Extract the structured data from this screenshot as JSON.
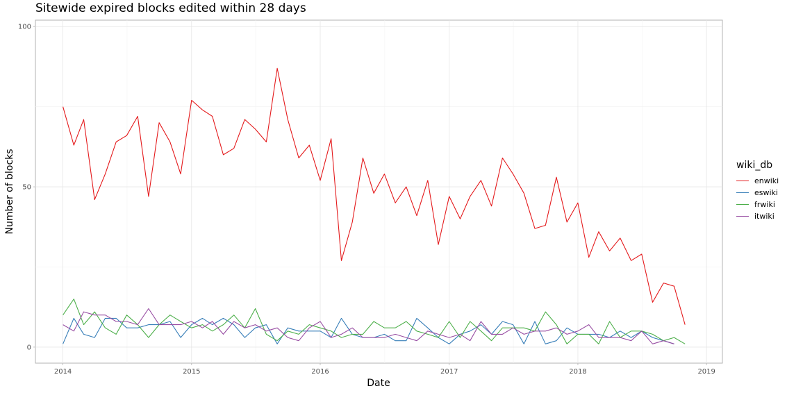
{
  "chart_data": {
    "type": "line",
    "title": "Sitewide expired blocks edited within 28 days",
    "xlabel": "Date",
    "ylabel": "Number of blocks",
    "xlim": [
      "2013-10-15",
      "2019-02-15"
    ],
    "ylim": [
      -5,
      102
    ],
    "x_ticks": [
      "2014",
      "2015",
      "2016",
      "2017",
      "2018",
      "2019"
    ],
    "y_ticks": [
      0,
      50,
      100
    ],
    "grid": true,
    "legend_title": "wiki_db",
    "legend_position": "right",
    "x": [
      "2014-01",
      "2014-02",
      "2014-03",
      "2014-04",
      "2014-05",
      "2014-06",
      "2014-07",
      "2014-08",
      "2014-09",
      "2014-10",
      "2014-11",
      "2014-12",
      "2015-01",
      "2015-02",
      "2015-03",
      "2015-04",
      "2015-05",
      "2015-06",
      "2015-07",
      "2015-08",
      "2015-09",
      "2015-10",
      "2015-11",
      "2015-12",
      "2016-01",
      "2016-02",
      "2016-03",
      "2016-04",
      "2016-05",
      "2016-06",
      "2016-07",
      "2016-08",
      "2016-09",
      "2016-10",
      "2016-11",
      "2016-12",
      "2017-01",
      "2017-02",
      "2017-03",
      "2017-04",
      "2017-05",
      "2017-06",
      "2017-07",
      "2017-08",
      "2017-09",
      "2017-10",
      "2017-11",
      "2017-12",
      "2018-01",
      "2018-02",
      "2018-03",
      "2018-04",
      "2018-05",
      "2018-06",
      "2018-07",
      "2018-08",
      "2018-09",
      "2018-10",
      "2018-11"
    ],
    "series": [
      {
        "name": "enwiki",
        "color": "#e41a1c",
        "values": [
          75,
          63,
          71,
          46,
          54,
          64,
          66,
          72,
          47,
          70,
          64,
          54,
          77,
          74,
          72,
          60,
          62,
          71,
          68,
          64,
          87,
          71,
          59,
          63,
          52,
          65,
          27,
          39,
          59,
          48,
          54,
          45,
          50,
          41,
          52,
          32,
          47,
          40,
          47,
          52,
          44,
          59,
          54,
          48,
          37,
          38,
          53,
          39,
          45,
          28,
          36,
          30,
          34,
          27,
          29,
          14,
          20,
          19,
          7
        ]
      },
      {
        "name": "eswiki",
        "color": "#377eb8",
        "values": [
          1,
          9,
          4,
          3,
          9,
          9,
          6,
          6,
          7,
          7,
          8,
          3,
          7,
          9,
          7,
          9,
          7,
          3,
          6,
          7,
          1,
          6,
          5,
          5,
          5,
          3,
          9,
          4,
          3,
          3,
          4,
          2,
          2,
          9,
          6,
          3,
          1,
          4,
          5,
          7,
          4,
          8,
          7,
          1,
          8,
          1,
          2,
          6,
          4,
          4,
          4,
          3,
          5,
          3,
          5,
          3,
          2,
          1,
          null
        ]
      },
      {
        "name": "frwiki",
        "color": "#4daf4a",
        "values": [
          10,
          15,
          7,
          11,
          6,
          4,
          10,
          7,
          3,
          7,
          10,
          8,
          6,
          7,
          5,
          7,
          10,
          6,
          12,
          4,
          2,
          5,
          4,
          7,
          6,
          5,
          3,
          4,
          4,
          8,
          6,
          6,
          8,
          5,
          4,
          3,
          8,
          3,
          8,
          5,
          2,
          6,
          6,
          6,
          5,
          11,
          7,
          1,
          4,
          4,
          1,
          8,
          3,
          5,
          5,
          4,
          2,
          3,
          1
        ]
      },
      {
        "name": "itwiki",
        "color": "#984ea3",
        "values": [
          7,
          5,
          11,
          10,
          10,
          8,
          8,
          7,
          12,
          7,
          7,
          7,
          8,
          6,
          8,
          4,
          8,
          6,
          7,
          5,
          6,
          3,
          2,
          6,
          8,
          3,
          4,
          6,
          3,
          3,
          3,
          4,
          3,
          2,
          5,
          4,
          3,
          4,
          2,
          8,
          4,
          4,
          6,
          4,
          5,
          5,
          6,
          4,
          5,
          7,
          3,
          3,
          3,
          2,
          5,
          1,
          2,
          1,
          null
        ]
      }
    ]
  }
}
